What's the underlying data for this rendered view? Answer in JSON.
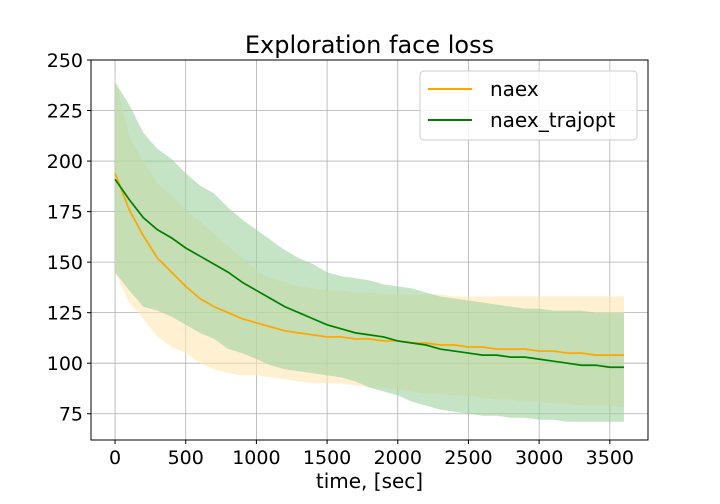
{
  "chart_data": {
    "type": "line",
    "title": "Exploration face loss",
    "xlabel": "time, [sec]",
    "ylabel": "",
    "xlim": [
      -170,
      3770
    ],
    "ylim": [
      62,
      250
    ],
    "xticks": [
      0,
      500,
      1000,
      1500,
      2000,
      2500,
      3000,
      3500
    ],
    "yticks": [
      75,
      100,
      125,
      150,
      175,
      200,
      225,
      250
    ],
    "grid": true,
    "legend_position": "top-right",
    "x": [
      0,
      100,
      200,
      300,
      400,
      500,
      600,
      700,
      800,
      900,
      1000,
      1100,
      1200,
      1300,
      1400,
      1500,
      1600,
      1700,
      1800,
      1900,
      2000,
      2100,
      2200,
      2300,
      2400,
      2500,
      2600,
      2700,
      2800,
      2900,
      3000,
      3100,
      3200,
      3300,
      3400,
      3500,
      3600
    ],
    "series": [
      {
        "name": "naex",
        "color": "#ffa500",
        "band_color": "#ffe6b3",
        "values": [
          194,
          176,
          163,
          152,
          145,
          138,
          132,
          128,
          125,
          122,
          120,
          118,
          116,
          115,
          114,
          113,
          113,
          112,
          112,
          111,
          111,
          110,
          110,
          109,
          109,
          108,
          108,
          107,
          107,
          107,
          106,
          106,
          105,
          105,
          104,
          104,
          104
        ],
        "upper": [
          241,
          212,
          200,
          189,
          183,
          176,
          170,
          164,
          158,
          152,
          146,
          142,
          140,
          138,
          137,
          136,
          136,
          135,
          135,
          134,
          134,
          134,
          134,
          134,
          133,
          133,
          133,
          133,
          133,
          133,
          133,
          133,
          133,
          133,
          133,
          133,
          133
        ],
        "lower": [
          145,
          130,
          122,
          113,
          108,
          105,
          100,
          97,
          95,
          94,
          94,
          93,
          92,
          91,
          90,
          90,
          90,
          89,
          88,
          88,
          87,
          86,
          85,
          85,
          84,
          84,
          83,
          82,
          82,
          81,
          81,
          80,
          80,
          79,
          79,
          79,
          78
        ]
      },
      {
        "name": "naex_trajopt",
        "color": "#008000",
        "band_color": "#9fd29f",
        "values": [
          191,
          181,
          172,
          166,
          162,
          157,
          153,
          149,
          145,
          140,
          136,
          132,
          128,
          125,
          122,
          119,
          117,
          115,
          114,
          113,
          111,
          110,
          109,
          107,
          106,
          105,
          104,
          104,
          103,
          103,
          102,
          101,
          100,
          99,
          99,
          98,
          98
        ],
        "upper": [
          239,
          228,
          214,
          206,
          201,
          194,
          188,
          184,
          177,
          171,
          166,
          161,
          156,
          152,
          149,
          145,
          143,
          142,
          141,
          139,
          138,
          137,
          135,
          133,
          132,
          131,
          130,
          129,
          128,
          127,
          127,
          126,
          126,
          126,
          125,
          125,
          125
        ],
        "lower": [
          145,
          136,
          128,
          126,
          123,
          119,
          115,
          112,
          107,
          105,
          102,
          99,
          97,
          96,
          95,
          94,
          93,
          91,
          88,
          86,
          84,
          81,
          79,
          77,
          76,
          75,
          74,
          74,
          73,
          73,
          72,
          72,
          71,
          71,
          71,
          71,
          71
        ]
      }
    ]
  }
}
